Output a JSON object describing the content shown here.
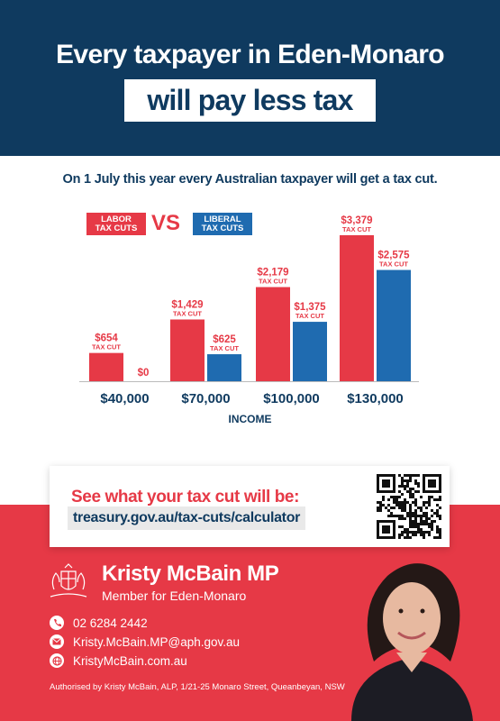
{
  "header": {
    "headline": "Every taxpayer in Eden-Monaro",
    "subheadline": "will pay less tax"
  },
  "intro": "On 1 July  this year every Australian taxpayer will  get a tax cut.",
  "legend": {
    "labor": "LABOR\nTAX CUTS",
    "vs": "VS",
    "liberal": "LIBERAL\nTAX CUTS"
  },
  "colors": {
    "navy": "#0f3a5f",
    "labor_red": "#e63946",
    "liberal_blue": "#1f6bb0"
  },
  "chart_data": {
    "type": "bar",
    "categories": [
      "$40,000",
      "$70,000",
      "$100,000",
      "$130,000"
    ],
    "series": [
      {
        "name": "LABOR TAX CUTS",
        "values": [
          654,
          1429,
          2179,
          3379
        ],
        "labels": [
          "$654",
          "$1,429",
          "$2,179",
          "$3,379"
        ],
        "sublabels": [
          "TAX CUT",
          "TAX CUT",
          "TAX CUT",
          "TAX CUT"
        ]
      },
      {
        "name": "LIBERAL TAX CUTS",
        "values": [
          0,
          625,
          1375,
          2575
        ],
        "labels": [
          "$0",
          "$625",
          "$1,375",
          "$2,575"
        ],
        "sublabels": [
          "",
          "TAX CUT",
          "TAX CUT",
          "TAX CUT"
        ]
      }
    ],
    "xlabel": "INCOME",
    "ylabel": "",
    "ylim": [
      0,
      3379
    ]
  },
  "calculator": {
    "title": "See what your tax cut will be:",
    "url": "treasury.gov.au/tax-cuts/calculator"
  },
  "mp": {
    "name": "Kristy McBain MP",
    "role": "Member for Eden-Monaro"
  },
  "contact": {
    "phone": "02 6284 2442",
    "email": "Kristy.McBain.MP@aph.gov.au",
    "website": "KristyMcBain.com.au"
  },
  "authorisation": "Authorised by Kristy McBain, ALP, 1/21-25 Monaro Street, Queanbeyan, NSW"
}
